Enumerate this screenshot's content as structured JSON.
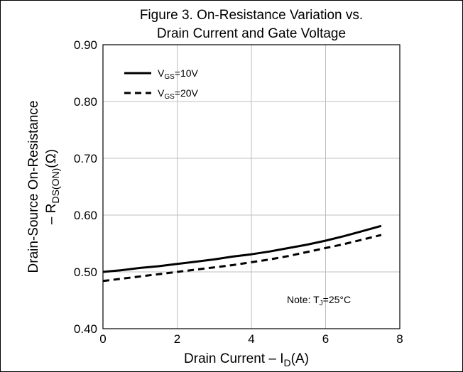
{
  "chart_data": {
    "type": "line",
    "title": "Figure 3. On-Resistance Variation vs.",
    "subtitle": "Drain Current and Gate Voltage",
    "xlabel": "Drain Current  –  I(A)",
    "xlabel_parts": {
      "prefix": "Drain Current  –  I",
      "sub": "D",
      "suffix": "(A)"
    },
    "ylabel_line1": "Drain-Source On-Resistance",
    "ylabel_line2_parts": {
      "prefix": "–  R",
      "sub": "DS(ON)",
      "suffix": "(Ω)"
    },
    "xlim": [
      0,
      8
    ],
    "ylim": [
      0.4,
      0.9
    ],
    "x_ticks": [
      0,
      2,
      4,
      6,
      8
    ],
    "x_tick_labels": [
      "0",
      "2",
      "4",
      "6",
      "8"
    ],
    "y_ticks": [
      0.4,
      0.5,
      0.6,
      0.7,
      0.8,
      0.9
    ],
    "y_tick_labels": [
      "0.40",
      "0.50",
      "0.60",
      "0.70",
      "0.80",
      "0.90"
    ],
    "grid": true,
    "legend_position": "top-left",
    "series": [
      {
        "name": "V=10V",
        "name_parts": {
          "prefix": "V",
          "sub": "GS",
          "suffix": "=10V"
        },
        "style": "solid",
        "x": [
          0,
          0.5,
          1,
          1.5,
          2,
          2.5,
          3,
          3.5,
          4,
          4.5,
          5,
          5.5,
          6,
          6.5,
          7,
          7.5
        ],
        "y": [
          0.5,
          0.503,
          0.507,
          0.51,
          0.514,
          0.518,
          0.522,
          0.527,
          0.531,
          0.536,
          0.542,
          0.548,
          0.555,
          0.563,
          0.572,
          0.581
        ]
      },
      {
        "name": "V=20V",
        "name_parts": {
          "prefix": "V",
          "sub": "GS",
          "suffix": "=20V"
        },
        "style": "dashed",
        "x": [
          0,
          0.5,
          1,
          1.5,
          2,
          2.5,
          3,
          3.5,
          4,
          4.5,
          5,
          5.5,
          6,
          6.5,
          7,
          7.5
        ],
        "y": [
          0.484,
          0.488,
          0.492,
          0.496,
          0.5,
          0.504,
          0.508,
          0.512,
          0.517,
          0.522,
          0.528,
          0.535,
          0.542,
          0.549,
          0.557,
          0.565
        ]
      }
    ],
    "annotation_parts": {
      "prefix": "Note: T",
      "sub": "J",
      "suffix": "=25°C"
    },
    "colors": {
      "line": "#000000",
      "grid": "#bfbfbf",
      "frame": "#000000"
    }
  }
}
